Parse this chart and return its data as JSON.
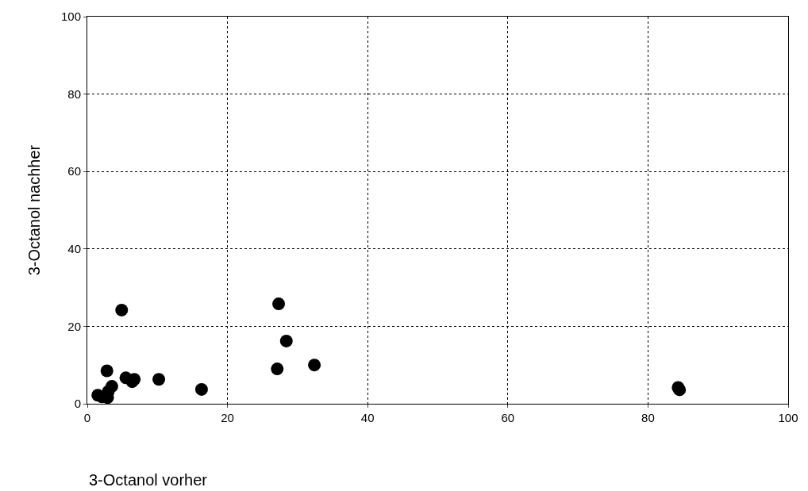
{
  "chart_data": {
    "type": "scatter",
    "xlabel": "3-Octanol vorher",
    "ylabel": "3-Octanol nachher",
    "x": [
      4.9,
      2.8,
      5.5,
      6.7,
      6.4,
      10.2,
      16.3,
      3.5,
      3.0,
      1.5,
      2.9,
      2.1,
      27.3,
      28.4,
      27.1,
      32.4,
      84.3,
      84.5
    ],
    "series": [
      {
        "color": "#000000",
        "values": [
          24.2,
          8.5,
          6.7,
          6.3,
          5.7,
          6.3,
          3.7,
          4.5,
          3.2,
          2.2,
          1.6,
          1.8,
          25.8,
          16.2,
          9.0,
          10.0,
          4.2,
          3.6
        ]
      }
    ],
    "xlim": [
      0,
      100
    ],
    "ylim": [
      0,
      100
    ],
    "xticks": [
      0,
      20,
      40,
      60,
      80,
      100
    ],
    "yticks": [
      0,
      20,
      40,
      60,
      80,
      100
    ],
    "grid": true,
    "marker": "circle"
  }
}
